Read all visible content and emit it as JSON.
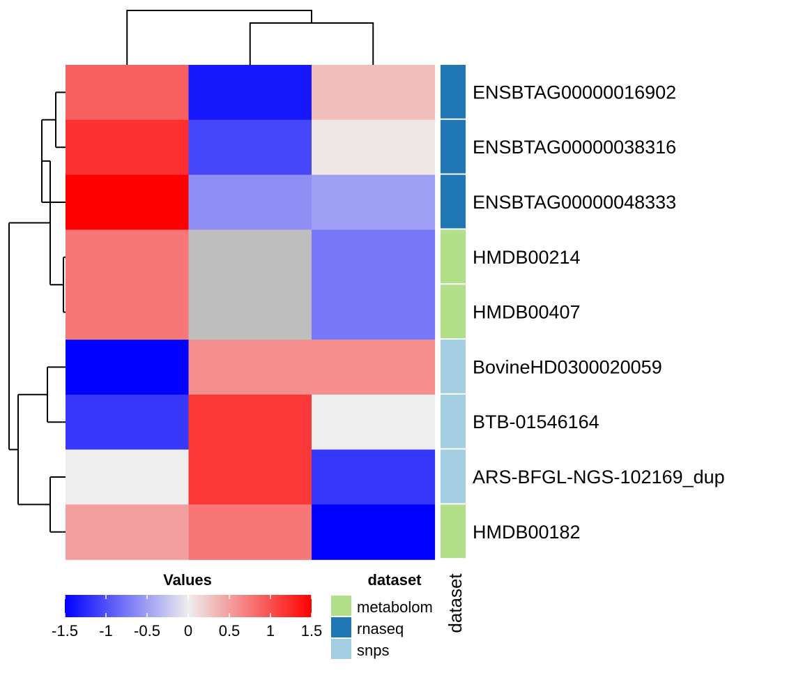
{
  "chart_data": {
    "type": "heatmap",
    "columns": [
      "",
      "",
      ""
    ],
    "rows": [
      {
        "label": "ENSBTAG00000016902",
        "dataset": "rnaseq",
        "values": [
          0.9,
          -1.35,
          0.3
        ]
      },
      {
        "label": "ENSBTAG00000038316",
        "dataset": "rnaseq",
        "values": [
          1.2,
          -1.05,
          0.05
        ]
      },
      {
        "label": "ENSBTAG00000048333",
        "dataset": "rnaseq",
        "values": [
          1.5,
          -0.6,
          -0.5
        ]
      },
      {
        "label": "HMDB00214",
        "dataset": "metabolomics",
        "values": [
          0.75,
          null,
          -0.75
        ]
      },
      {
        "label": "HMDB00407",
        "dataset": "metabolomics",
        "values": [
          0.75,
          null,
          -0.75
        ]
      },
      {
        "label": "BovineHD0300020059",
        "dataset": "snps",
        "values": [
          -1.5,
          0.6,
          0.6
        ]
      },
      {
        "label": "BTB-01546164",
        "dataset": "snps",
        "values": [
          -1.15,
          1.15,
          0.0
        ]
      },
      {
        "label": "ARS-BFGL-NGS-102169_dup",
        "dataset": "snps",
        "values": [
          0.0,
          1.15,
          -1.15
        ]
      },
      {
        "label": "HMDB00182",
        "dataset": "metabolomics",
        "values": [
          0.5,
          0.75,
          -1.5
        ]
      }
    ],
    "na_color": "#bebebe",
    "color_scale": {
      "min": -1.5,
      "max": 1.5,
      "low": "#0000ff",
      "mid": "#eeeeee",
      "high": "#ff0000"
    },
    "values_legend": {
      "title": "Values",
      "ticks": [
        "-1.5",
        "-1",
        "-0.5",
        "0",
        "0.5",
        "1",
        "1.5"
      ],
      "tick_values": [
        -1.5,
        -1,
        -0.5,
        0,
        0.5,
        1,
        1.5
      ]
    },
    "annotation": {
      "axis_label": "dataset",
      "legend_title": "dataset",
      "categories": [
        {
          "name": "metabolomics",
          "display": "metabolom",
          "color": "#b2df8a"
        },
        {
          "name": "rnaseq",
          "display": "rnaseq",
          "color": "#1f78b4"
        },
        {
          "name": "snps",
          "display": "snps",
          "color": "#a6cee3"
        }
      ]
    },
    "dendrograms": {
      "columns": true,
      "rows": true
    }
  }
}
